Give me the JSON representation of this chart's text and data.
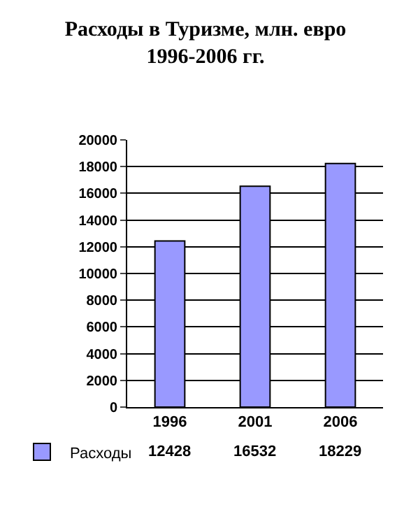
{
  "chart_data": {
    "type": "bar",
    "title": "Расходы в Туризме, млн. евро\n1996-2006 гг.",
    "categories": [
      "1996",
      "2001",
      "2006"
    ],
    "series": [
      {
        "name": "Расходы",
        "color": "#9999ff",
        "values": [
          12428,
          16532,
          18229
        ]
      }
    ],
    "ylim": [
      0,
      20000
    ],
    "yticks": [
      0,
      2000,
      4000,
      6000,
      8000,
      10000,
      12000,
      14000,
      16000,
      18000,
      20000
    ],
    "grid": "y",
    "legend": "bottom left",
    "data_labels": true
  }
}
